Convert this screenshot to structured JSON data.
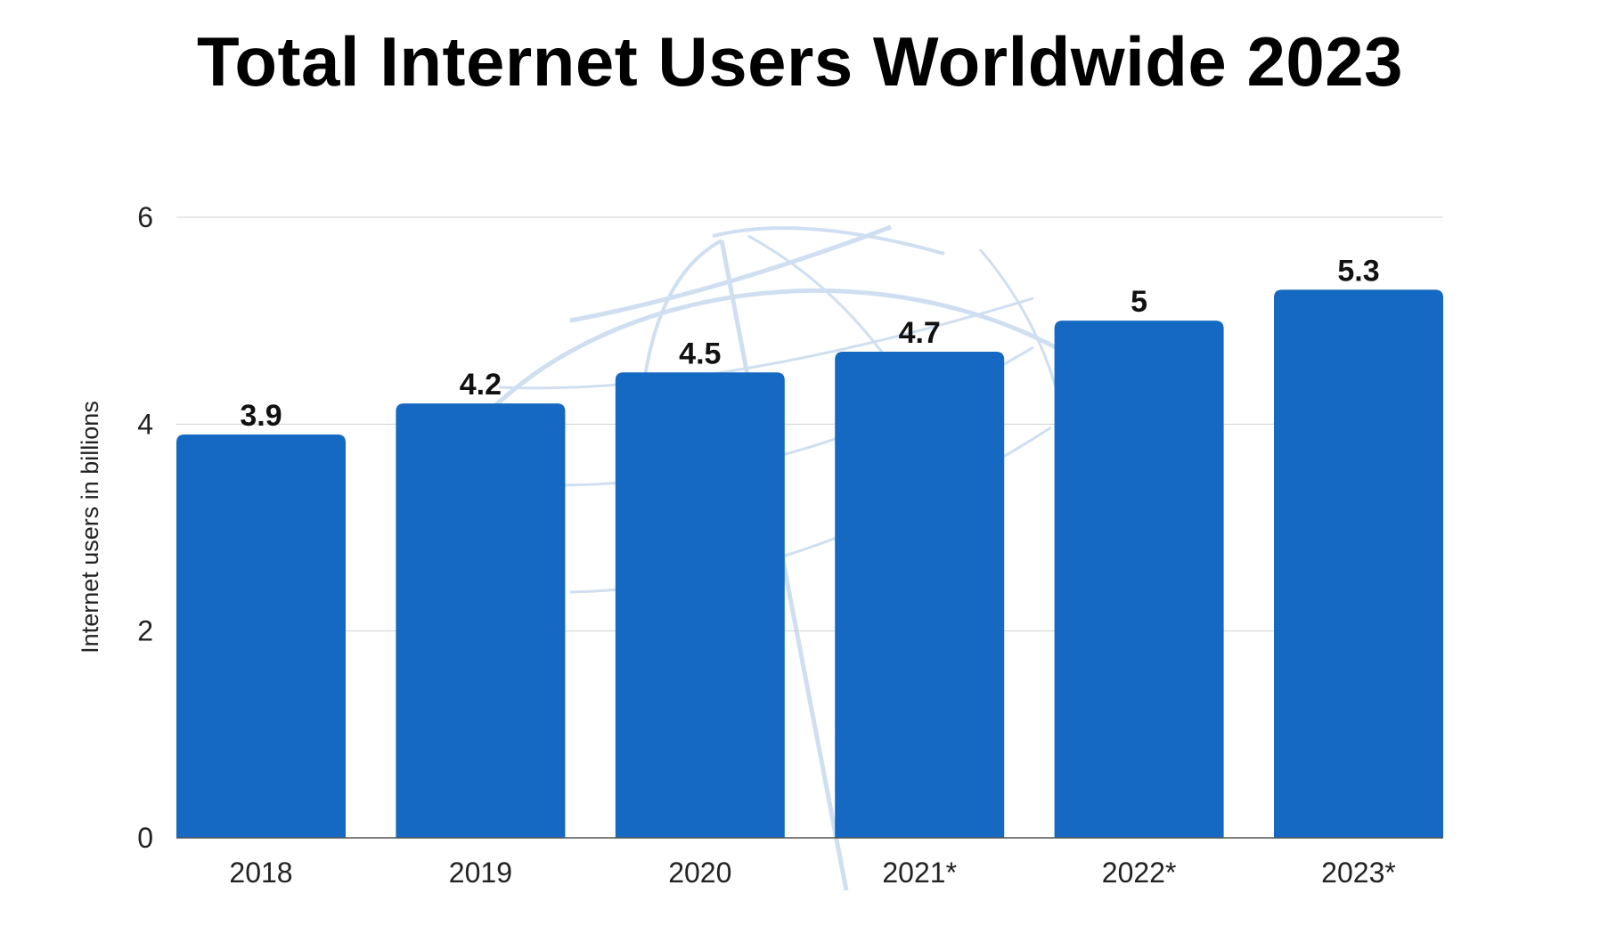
{
  "chart_data": {
    "type": "bar",
    "title": "Total Internet Users Worldwide 2023",
    "ylabel": "Internet users in billions",
    "xlabel": "",
    "categories": [
      "2018",
      "2019",
      "2020",
      "2021*",
      "2022*",
      "2023*"
    ],
    "values": [
      3.9,
      4.2,
      4.5,
      4.7,
      5,
      5.3
    ],
    "value_labels": [
      "3.9",
      "4.2",
      "4.5",
      "4.7",
      "5",
      "5.3"
    ],
    "ylim": [
      0,
      6
    ],
    "yticks": [
      0,
      2,
      4,
      6
    ],
    "ytick_labels": [
      "0",
      "2",
      "4",
      "6"
    ],
    "grid": true,
    "legend": "none",
    "bar_color": "#1569c2",
    "background_decoration": "globe-icon"
  }
}
